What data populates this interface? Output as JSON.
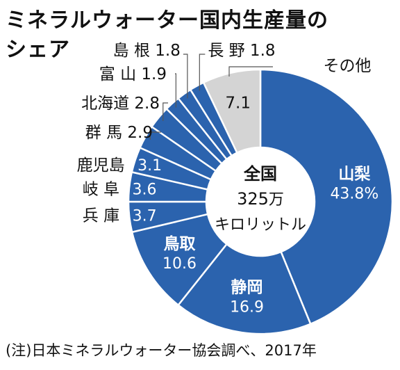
{
  "title_line1": "ミネラルウォーター国内生産量の",
  "title_line2": "シェア",
  "note": "(注)日本ミネラルウォーター協会調べ、2017年",
  "center": {
    "line1": "全国",
    "line2_value": "325",
    "line2_unit": "万",
    "line3": "キロリットル"
  },
  "colors": {
    "segment": "#2b63ae",
    "other": "#d4d4d4",
    "divider": "#ffffff",
    "leader": "#555555"
  },
  "chart_data": {
    "type": "donut",
    "total": {
      "value": 325,
      "unit": "万キロリットル"
    },
    "slices": [
      {
        "label": "山梨",
        "value": 43.8,
        "value_text": "43.8%"
      },
      {
        "label": "静岡",
        "value": 16.9,
        "value_text": "16.9"
      },
      {
        "label": "鳥取",
        "value": 10.6,
        "value_text": "10.6"
      },
      {
        "label": "兵庫",
        "value": 3.7,
        "value_text": "3.7"
      },
      {
        "label": "岐阜",
        "value": 3.6,
        "value_text": "3.6"
      },
      {
        "label": "鹿児島",
        "value": 3.1,
        "value_text": "3.1"
      },
      {
        "label": "群馬",
        "value": 2.9,
        "value_text": "2.9"
      },
      {
        "label": "北海道",
        "value": 2.8,
        "value_text": "2.8"
      },
      {
        "label": "富山",
        "value": 1.9,
        "value_text": "1.9"
      },
      {
        "label": "島根",
        "value": 1.8,
        "value_text": "1.8"
      },
      {
        "label": "長野",
        "value": 1.8,
        "value_text": "1.8"
      },
      {
        "label": "その他",
        "value": 7.1,
        "value_text": "7.1"
      }
    ]
  }
}
